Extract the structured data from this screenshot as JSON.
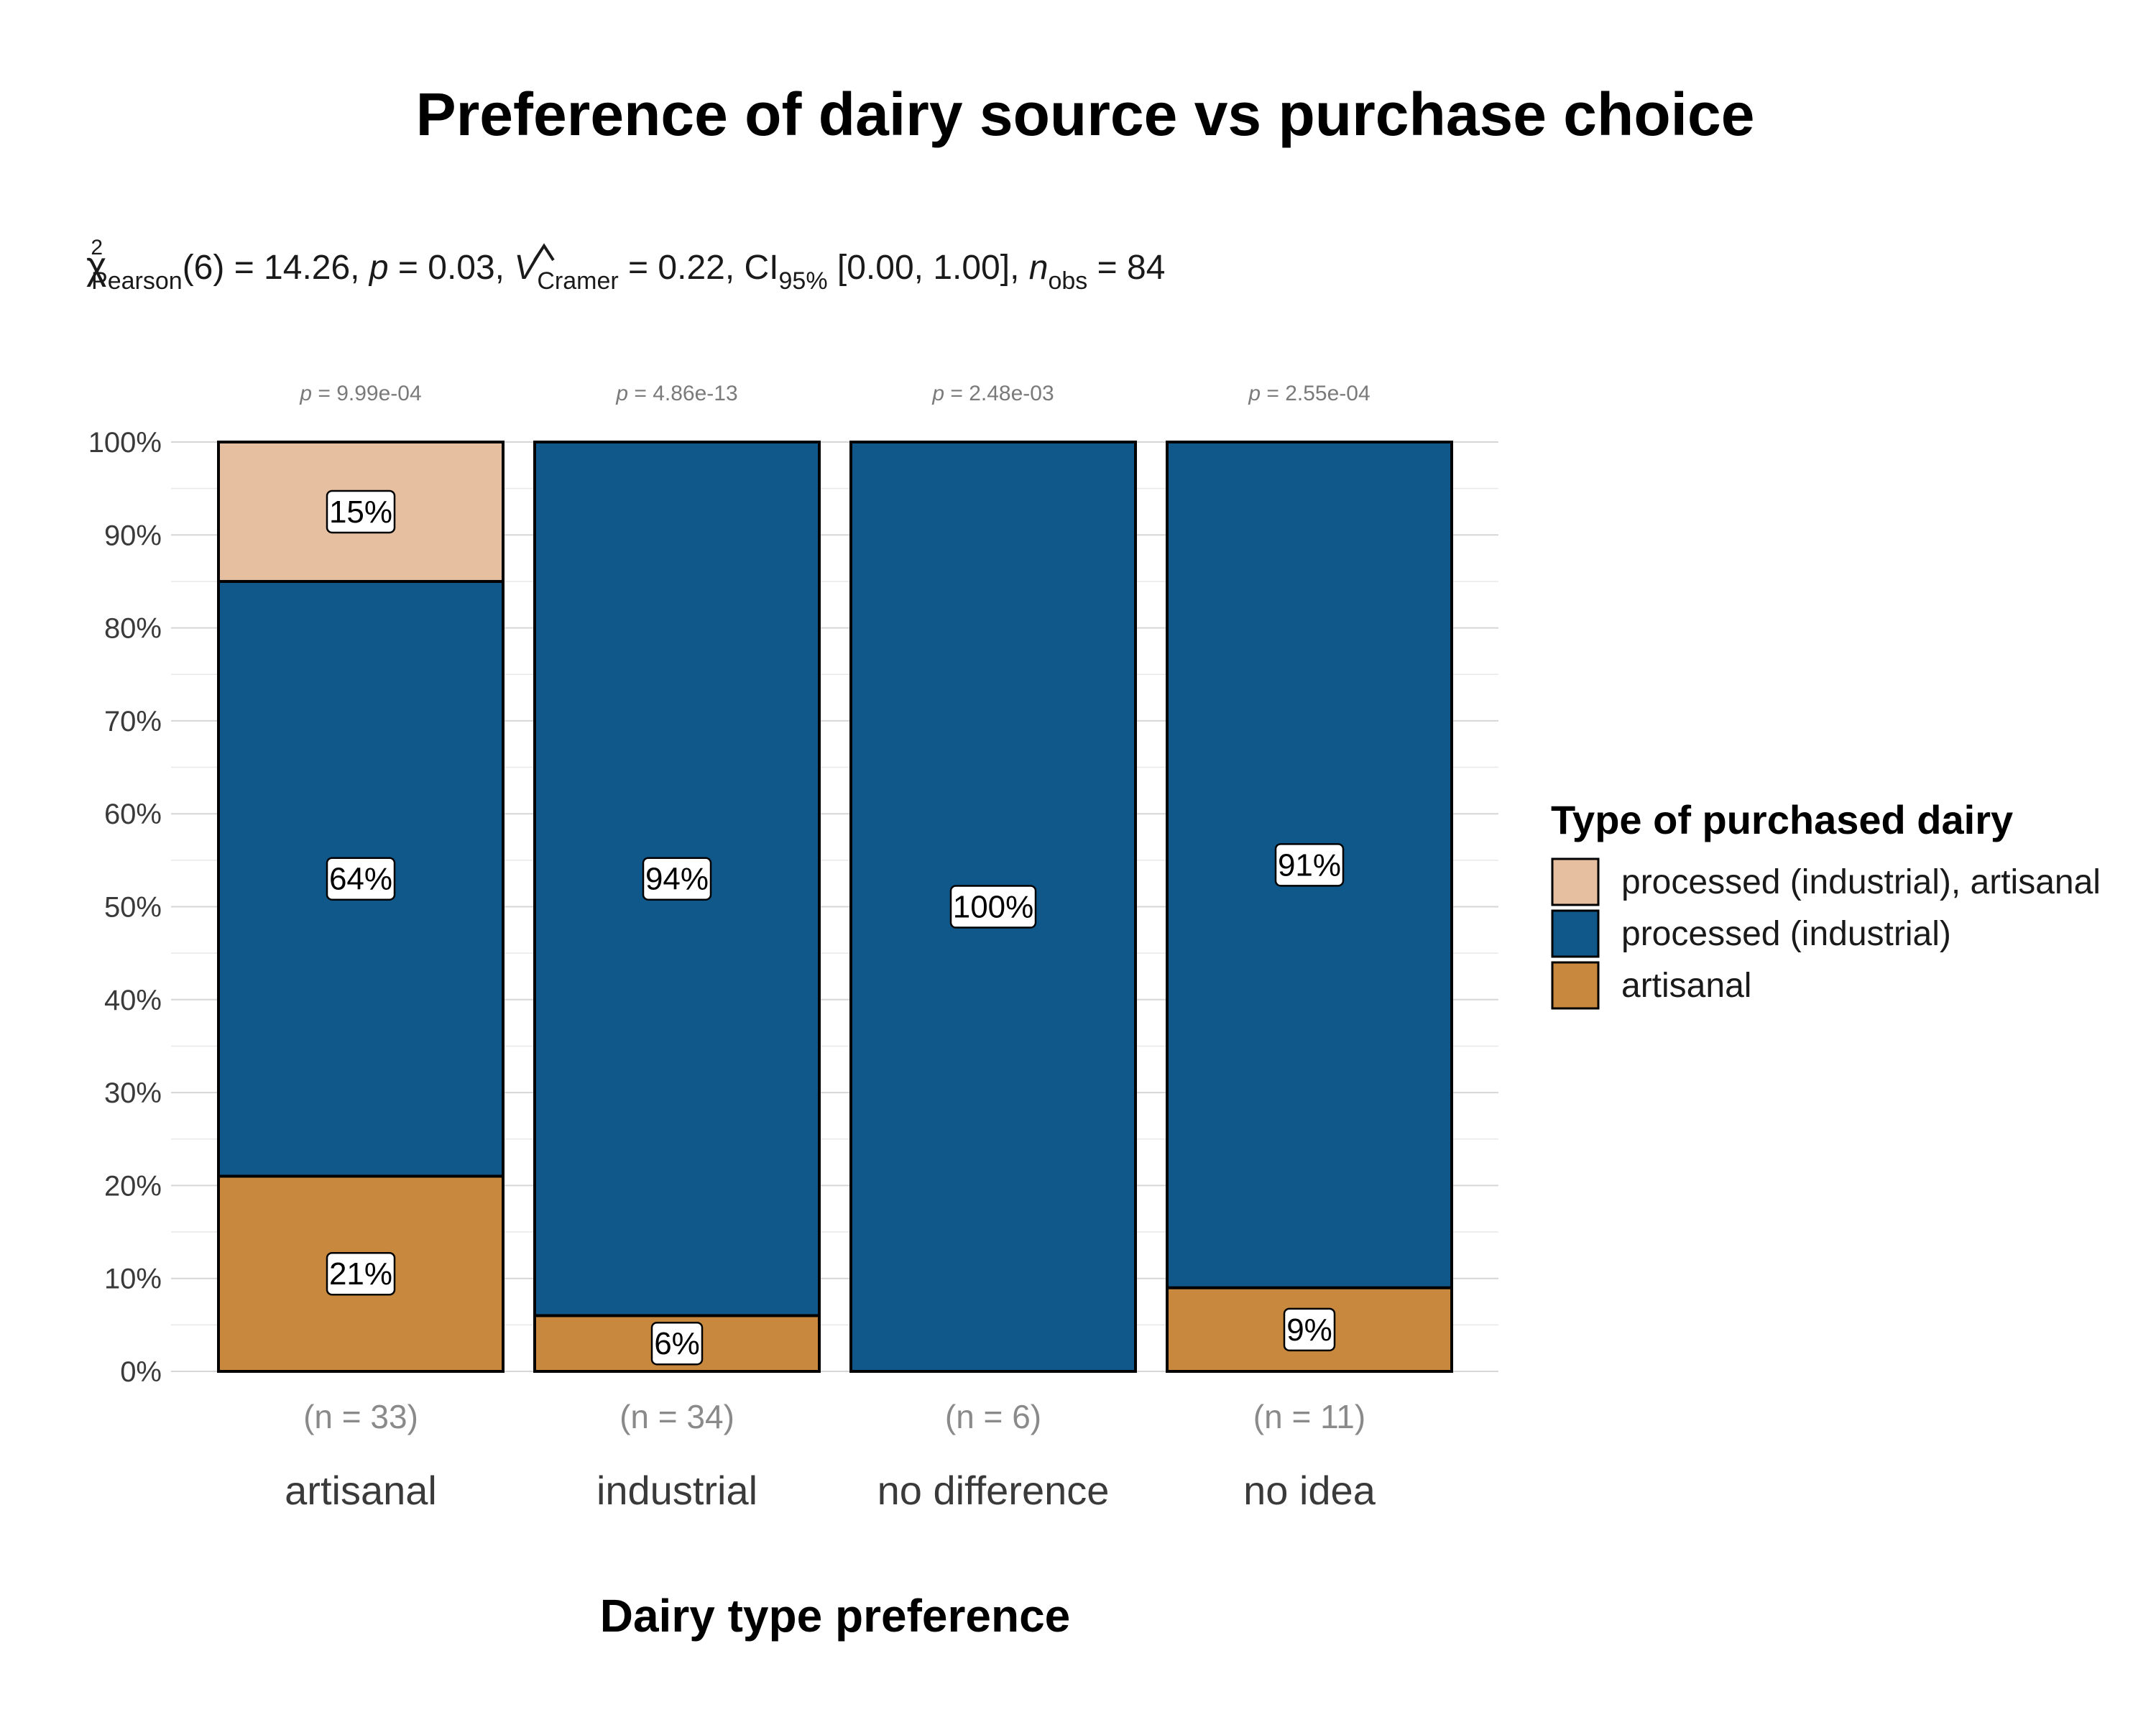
{
  "chart_data": {
    "type": "bar",
    "stacked": true,
    "normalized": true,
    "title": "Preference of dairy source vs purchase choice",
    "subtitle": {
      "chi_symbol": "χ",
      "chi_sup": "2",
      "chi_sub": "Pearson",
      "df_part": "(6) = 14.26, ",
      "p_symbol": "p",
      "p_part": " = 0.03, ",
      "v_symbol": "V",
      "v_sub": "Cramer",
      "v_part": " = 0.22, CI",
      "ci_sub": "95%",
      "ci_part": " [0.00, 1.00], ",
      "n_symbol": "n",
      "n_sub": "obs",
      "n_part": " = 84"
    },
    "xlabel": "Dairy type preference",
    "ylabel": "",
    "ylim": [
      0,
      100
    ],
    "yticks": [
      "0%",
      "10%",
      "20%",
      "30%",
      "40%",
      "50%",
      "60%",
      "70%",
      "80%",
      "90%",
      "100%"
    ],
    "grid": true,
    "legend": {
      "title": "Type of purchased dairy",
      "position": "right"
    },
    "categories": [
      "artisanal",
      "industrial",
      "no difference",
      "no idea"
    ],
    "counts": [
      "(n = 33)",
      "(n = 34)",
      "(n = 6)",
      "(n = 11)"
    ],
    "p_values": [
      "9.99e-04",
      "4.86e-13",
      "2.48e-03",
      "2.55e-04"
    ],
    "p_label": "p",
    "series": [
      {
        "name": "artisanal",
        "color": "#C8893E",
        "values": [
          21,
          6,
          0,
          9
        ],
        "labels": [
          "21%",
          "6%",
          "",
          "9%"
        ]
      },
      {
        "name": "processed (industrial)",
        "color": "#10588A",
        "values": [
          64,
          94,
          100,
          91
        ],
        "labels": [
          "64%",
          "94%",
          "100%",
          "91%"
        ]
      },
      {
        "name": "processed (industrial), artisanal",
        "color": "#E6BFA0",
        "values": [
          15,
          0,
          0,
          0
        ],
        "labels": [
          "15%",
          "",
          "",
          ""
        ]
      }
    ],
    "legend_order": [
      "processed (industrial), artisanal",
      "processed (industrial)",
      "artisanal"
    ]
  }
}
